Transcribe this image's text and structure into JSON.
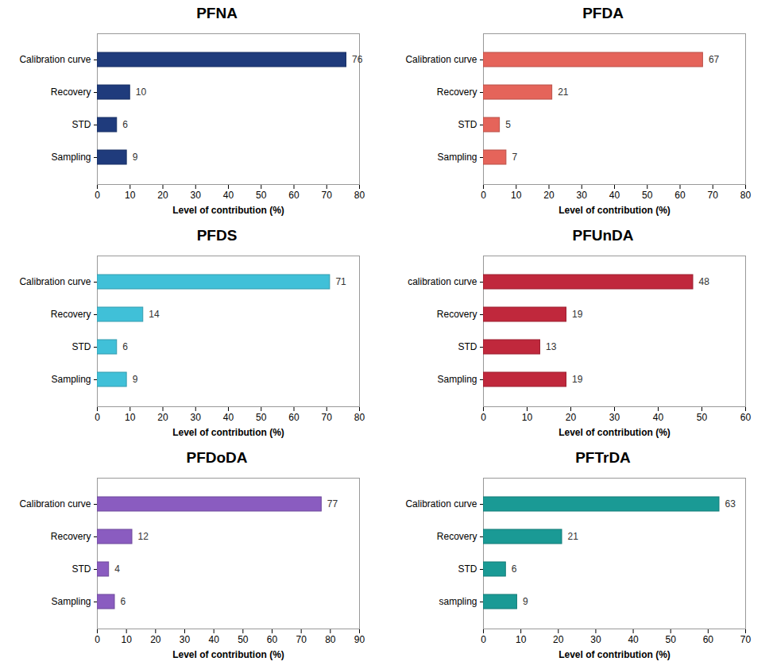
{
  "chart_data": [
    {
      "type": "bar",
      "orientation": "horizontal",
      "title": "PFNA",
      "xlabel": "Level of contribution (%)",
      "categories": [
        "Calibration curve",
        "Recovery",
        "STD",
        "Sampling"
      ],
      "values": [
        76,
        10,
        6,
        9
      ],
      "color": "#1f3b7c",
      "xlim": [
        0,
        80
      ],
      "xticks": [
        0,
        10,
        20,
        30,
        40,
        50,
        60,
        70,
        80
      ],
      "grid": false,
      "data_labels": true
    },
    {
      "type": "bar",
      "orientation": "horizontal",
      "title": "PFDA",
      "xlabel": "Level of contribution (%)",
      "categories": [
        "Calibration curve",
        "Recovery",
        "STD",
        "Sampling"
      ],
      "values": [
        67,
        21,
        5,
        7
      ],
      "color": "#e5645a",
      "xlim": [
        0,
        80
      ],
      "xticks": [
        0,
        10,
        20,
        30,
        40,
        50,
        60,
        70,
        80
      ],
      "grid": false,
      "data_labels": true
    },
    {
      "type": "bar",
      "orientation": "horizontal",
      "title": "PFDS",
      "xlabel": "Level of contribution (%)",
      "categories": [
        "Calibration curve",
        "Recovery",
        "STD",
        "Sampling"
      ],
      "values": [
        71,
        14,
        6,
        9
      ],
      "color": "#40c0d8",
      "xlim": [
        0,
        80
      ],
      "xticks": [
        0,
        10,
        20,
        30,
        40,
        50,
        60,
        70,
        80
      ],
      "grid": false,
      "data_labels": true
    },
    {
      "type": "bar",
      "orientation": "horizontal",
      "title": "PFUnDA",
      "xlabel": "Level of contribution (%)",
      "categories": [
        "calibration curve",
        "Recovery",
        "STD",
        "Sampling"
      ],
      "values": [
        48,
        19,
        13,
        19
      ],
      "color": "#c0283c",
      "xlim": [
        0,
        60
      ],
      "xticks": [
        0,
        10,
        20,
        30,
        40,
        50,
        60
      ],
      "grid": false,
      "data_labels": true
    },
    {
      "type": "bar",
      "orientation": "horizontal",
      "title": "PFDoDA",
      "xlabel": "Level of contribution (%)",
      "categories": [
        "Calibration curve",
        "Recovery",
        "STD",
        "Sampling"
      ],
      "values": [
        77,
        12,
        4,
        6
      ],
      "color": "#8a5cc0",
      "xlim": [
        0,
        90
      ],
      "xticks": [
        0,
        10,
        20,
        30,
        40,
        50,
        60,
        70,
        80,
        90
      ],
      "grid": false,
      "data_labels": true
    },
    {
      "type": "bar",
      "orientation": "horizontal",
      "title": "PFTrDA",
      "xlabel": "Level of contribution (%)",
      "categories": [
        "Calibration curve",
        "Recovery",
        "STD",
        "sampling"
      ],
      "values": [
        63,
        21,
        6,
        9
      ],
      "color": "#1a9a95",
      "xlim": [
        0,
        70
      ],
      "xticks": [
        0,
        10,
        20,
        30,
        40,
        50,
        60,
        70
      ],
      "grid": false,
      "data_labels": true
    }
  ]
}
